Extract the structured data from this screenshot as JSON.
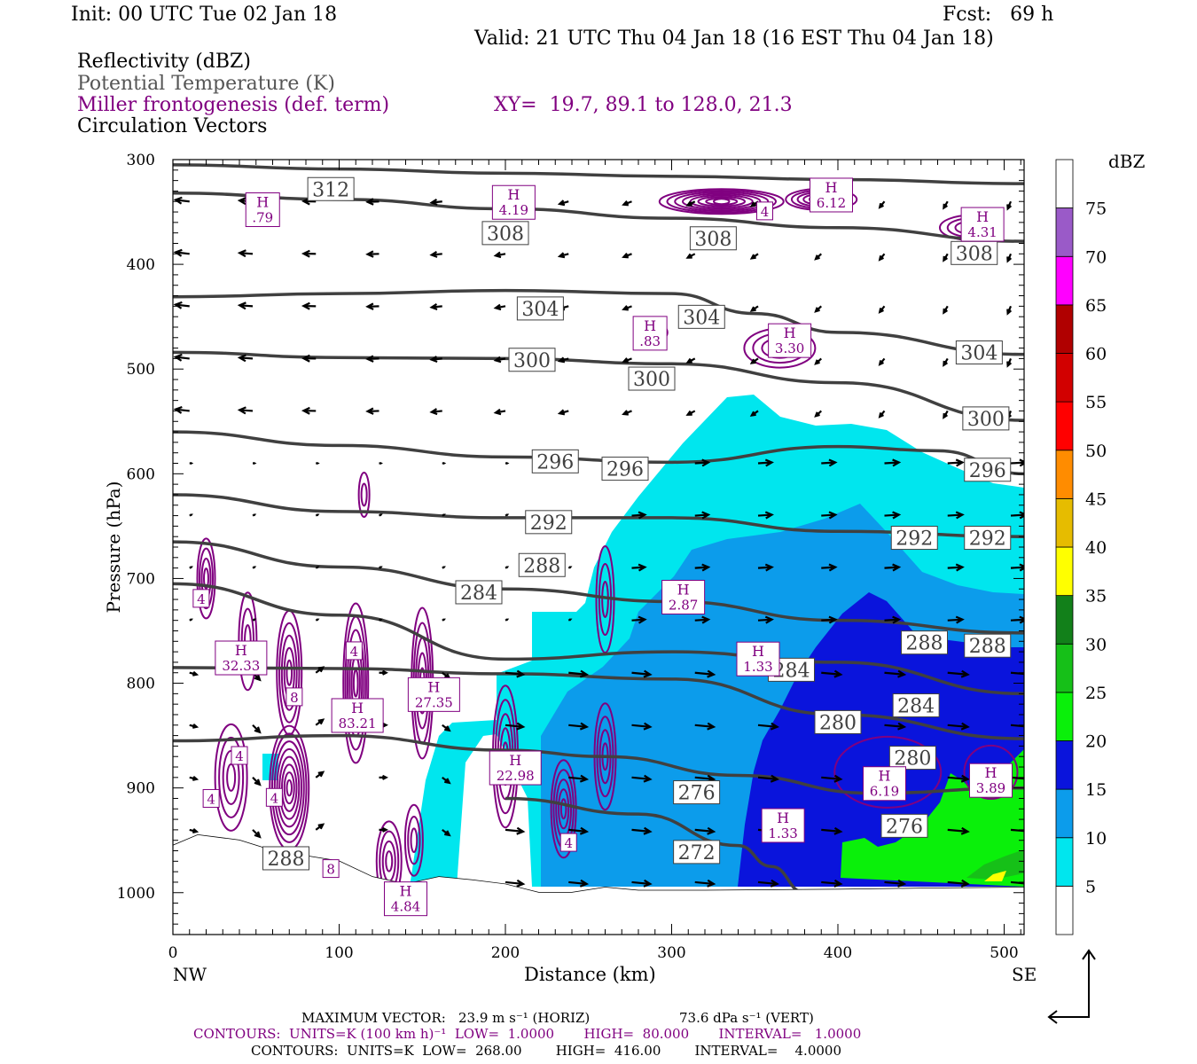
{
  "header": {
    "init": "Init: 00 UTC Tue 02 Jan 18",
    "fcst": "Fcst:   69 h",
    "valid": "Valid: 21 UTC Thu 04 Jan 18 (16 EST Thu 04 Jan 18)"
  },
  "fields": {
    "reflectivity": "Reflectivity (dBZ)",
    "theta": "Potential Temperature (K)",
    "frontogenesis": "Miller frontogenesis (def. term)",
    "xy": "XY=  19.7, 89.1 to 128.0, 21.3",
    "vectors": "Circulation Vectors"
  },
  "colors": {
    "theta_line": "#404040",
    "fronto_line": "#800080",
    "vector": "#000000"
  },
  "chart_data": {
    "type": "heatmap",
    "xlabel": "Distance (km)",
    "ylabel": "Pressure (hPa)",
    "xlim": [
      0,
      512
    ],
    "ylim": [
      1040,
      300
    ],
    "x_ticks": [
      "0",
      "100",
      "200",
      "300",
      "400",
      "500"
    ],
    "y_ticks": [
      "300",
      "400",
      "500",
      "600",
      "700",
      "800",
      "900",
      "1000"
    ],
    "x_end_labels": {
      "left": "NW",
      "right": "SE"
    },
    "colorbar": {
      "unit": "dBZ",
      "levels": [
        5,
        10,
        15,
        20,
        25,
        30,
        35,
        40,
        45,
        50,
        55,
        60,
        65,
        70,
        75
      ],
      "colors": [
        "#ffffff",
        "#00e6ee",
        "#0c9ceb",
        "#0a14dc",
        "#0af00a",
        "#16c018",
        "#12801a",
        "#ffff00",
        "#e6bc00",
        "#ff8c00",
        "#ff0000",
        "#d20000",
        "#b00000",
        "#ff00ff",
        "#9a5ac8"
      ]
    },
    "theta_contours": [
      {
        "label": "312",
        "points": [
          [
            0,
            305
          ],
          [
            100,
            309
          ],
          [
            200,
            313
          ],
          [
            300,
            316
          ],
          [
            400,
            319
          ],
          [
            512,
            323
          ]
        ]
      },
      {
        "label": "308",
        "points": [
          [
            0,
            332
          ],
          [
            100,
            338
          ],
          [
            200,
            347
          ],
          [
            300,
            356
          ],
          [
            400,
            365
          ],
          [
            512,
            378
          ]
        ]
      },
      {
        "label": "304",
        "points": [
          [
            0,
            431
          ],
          [
            100,
            428
          ],
          [
            200,
            425
          ],
          [
            300,
            428
          ],
          [
            350,
            447
          ],
          [
            400,
            465
          ],
          [
            512,
            486
          ]
        ]
      },
      {
        "label": "300",
        "points": [
          [
            0,
            484
          ],
          [
            100,
            489
          ],
          [
            200,
            490
          ],
          [
            300,
            495
          ],
          [
            400,
            513
          ],
          [
            512,
            549
          ]
        ]
      },
      {
        "label": "296",
        "points": [
          [
            0,
            560
          ],
          [
            100,
            573
          ],
          [
            200,
            584
          ],
          [
            300,
            589
          ],
          [
            400,
            574
          ],
          [
            460,
            578
          ],
          [
            512,
            600
          ]
        ]
      },
      {
        "label": "292",
        "points": [
          [
            0,
            620
          ],
          [
            100,
            636
          ],
          [
            200,
            642
          ],
          [
            300,
            642
          ],
          [
            400,
            655
          ],
          [
            512,
            660
          ]
        ]
      },
      {
        "label": "288",
        "points": [
          [
            0,
            665
          ],
          [
            100,
            689
          ],
          [
            200,
            710
          ],
          [
            300,
            722
          ],
          [
            400,
            740
          ],
          [
            512,
            752
          ]
        ]
      },
      {
        "label": "284",
        "points": [
          [
            0,
            705
          ],
          [
            100,
            735
          ],
          [
            200,
            777
          ],
          [
            300,
            770
          ],
          [
            400,
            780
          ],
          [
            512,
            810
          ]
        ]
      },
      {
        "label": "280",
        "points": [
          [
            0,
            785
          ],
          [
            100,
            786
          ],
          [
            200,
            791
          ],
          [
            300,
            796
          ],
          [
            400,
            830
          ],
          [
            512,
            853
          ]
        ]
      },
      {
        "label": "276",
        "points": [
          [
            0,
            855
          ],
          [
            100,
            850
          ],
          [
            200,
            864
          ],
          [
            260,
            870
          ],
          [
            340,
            888
          ],
          [
            420,
            905
          ],
          [
            512,
            900
          ]
        ]
      },
      {
        "label": "272",
        "points": [
          [
            200,
            910
          ],
          [
            280,
            925
          ],
          [
            340,
            955
          ],
          [
            360,
            975
          ],
          [
            380,
            1000
          ]
        ]
      }
    ],
    "theta_labels": [
      {
        "text": "312",
        "x": 95,
        "p": 329
      },
      {
        "text": "308",
        "x": 200,
        "p": 371
      },
      {
        "text": "308",
        "x": 325,
        "p": 376
      },
      {
        "text": "308",
        "x": 482,
        "p": 390
      },
      {
        "text": "304",
        "x": 221,
        "p": 443
      },
      {
        "text": "304",
        "x": 318,
        "p": 451
      },
      {
        "text": "304",
        "x": 485,
        "p": 485
      },
      {
        "text": "300",
        "x": 216,
        "p": 492
      },
      {
        "text": "300",
        "x": 288,
        "p": 510
      },
      {
        "text": "300",
        "x": 489,
        "p": 548
      },
      {
        "text": "296",
        "x": 230,
        "p": 589
      },
      {
        "text": "296",
        "x": 272,
        "p": 596
      },
      {
        "text": "296",
        "x": 490,
        "p": 597
      },
      {
        "text": "292",
        "x": 226,
        "p": 647
      },
      {
        "text": "292",
        "x": 446,
        "p": 662
      },
      {
        "text": "292",
        "x": 490,
        "p": 662
      },
      {
        "text": "288",
        "x": 222,
        "p": 688
      },
      {
        "text": "288",
        "x": 452,
        "p": 762
      },
      {
        "text": "288",
        "x": 490,
        "p": 765
      },
      {
        "text": "284",
        "x": 184,
        "p": 714
      },
      {
        "text": "284",
        "x": 372,
        "p": 788
      },
      {
        "text": "284",
        "x": 447,
        "p": 822
      },
      {
        "text": "280",
        "x": 400,
        "p": 838
      },
      {
        "text": "280",
        "x": 445,
        "p": 872
      },
      {
        "text": "276",
        "x": 315,
        "p": 905
      },
      {
        "text": "276",
        "x": 440,
        "p": 937
      },
      {
        "text": "272",
        "x": 315,
        "p": 962
      },
      {
        "text": "288",
        "x": 68,
        "p": 968
      }
    ],
    "fronto_extrema": [
      {
        "label": "H",
        "value": ".79",
        "x": 54,
        "p": 347
      },
      {
        "label": "H",
        "value": "4.19",
        "x": 205,
        "p": 340
      },
      {
        "label": "H",
        "value": "6.12",
        "x": 396,
        "p": 333
      },
      {
        "label": "H",
        "value": "4.31",
        "x": 487,
        "p": 361
      },
      {
        "label": "H",
        "value": ".83",
        "x": 287,
        "p": 465
      },
      {
        "label": "H",
        "value": "3.30",
        "x": 371,
        "p": 472
      },
      {
        "label": "H",
        "value": "2.87",
        "x": 307,
        "p": 717
      },
      {
        "label": "H",
        "value": "32.33",
        "x": 41,
        "p": 775
      },
      {
        "label": "H",
        "value": "83.21",
        "x": 111,
        "p": 830
      },
      {
        "label": "H",
        "value": "27.35",
        "x": 157,
        "p": 810
      },
      {
        "label": "H",
        "value": "1.33",
        "x": 352,
        "p": 776
      },
      {
        "label": "H",
        "value": "22.98",
        "x": 206,
        "p": 880
      },
      {
        "label": "H",
        "value": "6.19",
        "x": 428,
        "p": 895
      },
      {
        "label": "H",
        "value": "3.89",
        "x": 492,
        "p": 892
      },
      {
        "label": "H",
        "value": "1.33",
        "x": 367,
        "p": 935
      },
      {
        "label": "H",
        "value": "4.84",
        "x": 140,
        "p": 1005
      }
    ],
    "fronto_numbers": [
      {
        "text": "4",
        "x": 17,
        "p": 719
      },
      {
        "text": "4",
        "x": 109,
        "p": 769
      },
      {
        "text": "8",
        "x": 73,
        "p": 813
      },
      {
        "text": "4",
        "x": 40,
        "p": 869
      },
      {
        "text": "4",
        "x": 23,
        "p": 910
      },
      {
        "text": "4",
        "x": 61,
        "p": 909
      },
      {
        "text": "8",
        "x": 95,
        "p": 977
      },
      {
        "text": "4",
        "x": 238,
        "p": 952
      },
      {
        "text": "4",
        "x": 356,
        "p": 349
      }
    ],
    "footer": {
      "max_vector_label": "MAXIMUM VECTOR:",
      "horiz": "23.9 m s⁻¹ (HORIZ)",
      "vert": "73.6 dPa s⁻¹ (VERT)",
      "c1": "CONTOURS:  UNITS=K (100 km h)⁻¹  LOW=  1.0000       HIGH=  80.000       INTERVAL=   1.0000",
      "c2": "CONTOURS:  UNITS=K  LOW=  268.00        HIGH=  416.00        INTERVAL=    4.0000"
    }
  }
}
